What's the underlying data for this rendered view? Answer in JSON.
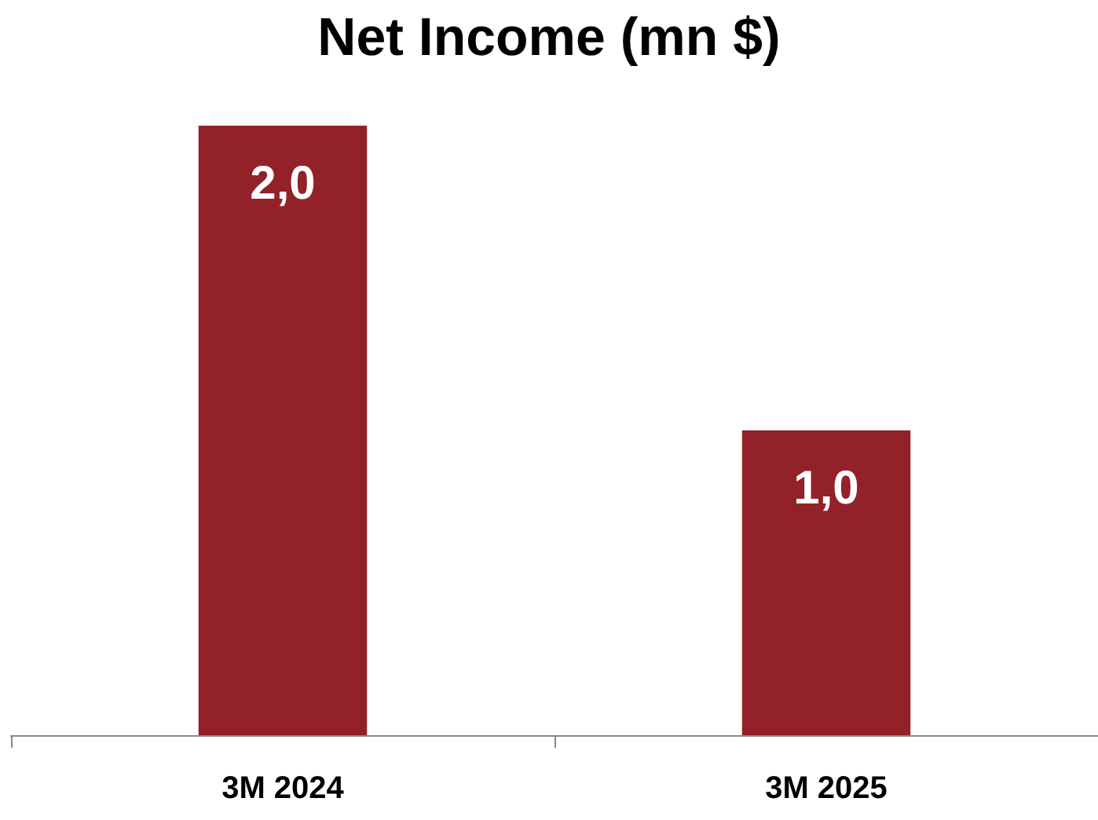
{
  "chart_data": {
    "type": "bar",
    "title": "Net Income (mn $)",
    "categories": [
      "3M 2024",
      "3M 2025"
    ],
    "values": [
      2.0,
      1.0
    ],
    "value_labels": [
      "2,0",
      "1,0"
    ],
    "color": "#93212a"
  }
}
